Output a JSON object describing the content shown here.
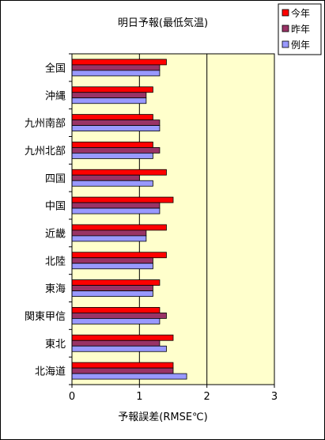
{
  "chart_data": {
    "type": "bar",
    "orientation": "horizontal",
    "title": "明日予報(最低気温)",
    "xlabel": "予報誤差(RMSE℃)",
    "ylabel": "",
    "xlim": [
      0,
      3
    ],
    "xticks": [
      "0",
      "1",
      "2",
      "3"
    ],
    "grid": "vertical",
    "legend_position": "top-right",
    "plot_background": "#ffffcc",
    "categories": [
      "全国",
      "沖縄",
      "九州南部",
      "九州北部",
      "四国",
      "中国",
      "近畿",
      "北陸",
      "東海",
      "関東甲信",
      "東北",
      "北海道"
    ],
    "series": [
      {
        "name": "今年",
        "color": "#ff0000",
        "values": [
          1.4,
          1.2,
          1.2,
          1.2,
          1.4,
          1.5,
          1.4,
          1.4,
          1.3,
          1.3,
          1.5,
          1.5
        ]
      },
      {
        "name": "昨年",
        "color": "#993366",
        "values": [
          1.3,
          1.1,
          1.3,
          1.3,
          1.0,
          1.3,
          1.1,
          1.2,
          1.2,
          1.4,
          1.3,
          1.5
        ]
      },
      {
        "name": "例年",
        "color": "#9999ff",
        "values": [
          1.3,
          1.1,
          1.3,
          1.2,
          1.2,
          1.3,
          1.1,
          1.2,
          1.2,
          1.3,
          1.4,
          1.7
        ]
      }
    ]
  }
}
